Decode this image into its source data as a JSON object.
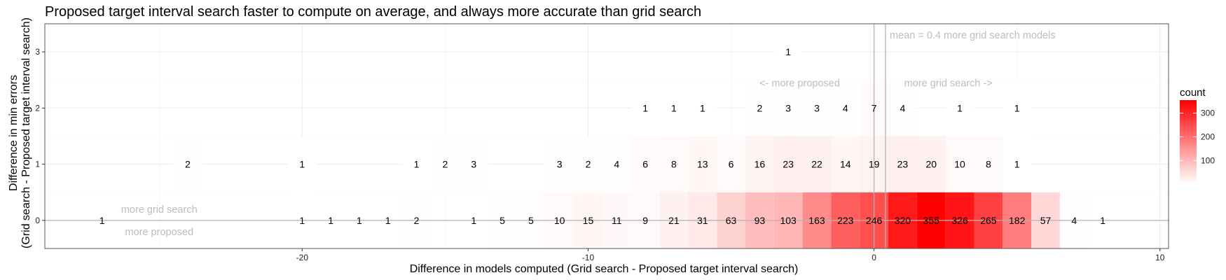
{
  "chart_data": {
    "type": "heatmap",
    "title": "Proposed target interval search faster to compute on average, and always more accurate than grid search",
    "xlabel": "Difference in models computed (Grid search - Proposed target interval search)",
    "ylabel_lines": [
      "Difference in min errors",
      "(Grid search - Proposed target interval search)"
    ],
    "xlim": [
      -29,
      10.3
    ],
    "ylim": [
      -0.5,
      3.5
    ],
    "x_ticks": [
      -20,
      -10,
      0,
      10
    ],
    "x_tick_labels": [
      "-20",
      "-10",
      "0",
      "10"
    ],
    "y_ticks": [
      0,
      1,
      2,
      3
    ],
    "y_tick_labels": [
      "0",
      "1",
      "2",
      "3"
    ],
    "grid": true,
    "color_scale": {
      "low": "#ffffff",
      "high": "#ff0000",
      "min": 1,
      "max": 355
    },
    "legend": {
      "title": "count",
      "ticks": [
        100,
        200,
        300
      ],
      "tick_labels": [
        "100",
        "200",
        "300"
      ],
      "position": "right"
    },
    "vlines": [
      {
        "x": 0,
        "note": "zero"
      },
      {
        "x": 0.4,
        "note": "mean"
      }
    ],
    "annotations": [
      {
        "text": "mean = 0.4 more grid search models",
        "x": 0.55,
        "y": 3.3,
        "anchor": "start"
      },
      {
        "text": "<- more proposed",
        "x": -2.6,
        "y": 2.45,
        "anchor": "middle"
      },
      {
        "text": "more grid search ->",
        "x": 2.6,
        "y": 2.45,
        "anchor": "middle"
      },
      {
        "text": "more grid search",
        "x": -25,
        "y": 0.2,
        "anchor": "middle"
      },
      {
        "text": "more proposed",
        "x": -25,
        "y": -0.2,
        "anchor": "middle"
      }
    ],
    "cells": [
      {
        "x": -27,
        "y": 0,
        "count": 1
      },
      {
        "x": -20,
        "y": 0,
        "count": 1
      },
      {
        "x": -19,
        "y": 0,
        "count": 1
      },
      {
        "x": -18,
        "y": 0,
        "count": 1
      },
      {
        "x": -17,
        "y": 0,
        "count": 1
      },
      {
        "x": -16,
        "y": 0,
        "count": 2
      },
      {
        "x": -14,
        "y": 0,
        "count": 1
      },
      {
        "x": -13,
        "y": 0,
        "count": 5
      },
      {
        "x": -12,
        "y": 0,
        "count": 5
      },
      {
        "x": -11,
        "y": 0,
        "count": 10
      },
      {
        "x": -10,
        "y": 0,
        "count": 15
      },
      {
        "x": -9,
        "y": 0,
        "count": 11
      },
      {
        "x": -8,
        "y": 0,
        "count": 9
      },
      {
        "x": -7,
        "y": 0,
        "count": 21
      },
      {
        "x": -6,
        "y": 0,
        "count": 31
      },
      {
        "x": -5,
        "y": 0,
        "count": 63
      },
      {
        "x": -4,
        "y": 0,
        "count": 93
      },
      {
        "x": -3,
        "y": 0,
        "count": 103
      },
      {
        "x": -2,
        "y": 0,
        "count": 163
      },
      {
        "x": -1,
        "y": 0,
        "count": 223
      },
      {
        "x": 0,
        "y": 0,
        "count": 246
      },
      {
        "x": 1,
        "y": 0,
        "count": 320
      },
      {
        "x": 2,
        "y": 0,
        "count": 355
      },
      {
        "x": 3,
        "y": 0,
        "count": 326
      },
      {
        "x": 4,
        "y": 0,
        "count": 265
      },
      {
        "x": 5,
        "y": 0,
        "count": 182
      },
      {
        "x": 6,
        "y": 0,
        "count": 57
      },
      {
        "x": 7,
        "y": 0,
        "count": 4
      },
      {
        "x": 8,
        "y": 0,
        "count": 1
      },
      {
        "x": -24,
        "y": 1,
        "count": 2
      },
      {
        "x": -20,
        "y": 1,
        "count": 1
      },
      {
        "x": -16,
        "y": 1,
        "count": 1
      },
      {
        "x": -15,
        "y": 1,
        "count": 2
      },
      {
        "x": -14,
        "y": 1,
        "count": 3
      },
      {
        "x": -11,
        "y": 1,
        "count": 3
      },
      {
        "x": -10,
        "y": 1,
        "count": 2
      },
      {
        "x": -9,
        "y": 1,
        "count": 4
      },
      {
        "x": -8,
        "y": 1,
        "count": 6
      },
      {
        "x": -7,
        "y": 1,
        "count": 8
      },
      {
        "x": -6,
        "y": 1,
        "count": 13
      },
      {
        "x": -5,
        "y": 1,
        "count": 6
      },
      {
        "x": -4,
        "y": 1,
        "count": 16
      },
      {
        "x": -3,
        "y": 1,
        "count": 23
      },
      {
        "x": -2,
        "y": 1,
        "count": 22
      },
      {
        "x": -1,
        "y": 1,
        "count": 14
      },
      {
        "x": 0,
        "y": 1,
        "count": 19
      },
      {
        "x": 1,
        "y": 1,
        "count": 23
      },
      {
        "x": 2,
        "y": 1,
        "count": 20
      },
      {
        "x": 3,
        "y": 1,
        "count": 10
      },
      {
        "x": 4,
        "y": 1,
        "count": 8
      },
      {
        "x": 5,
        "y": 1,
        "count": 1
      },
      {
        "x": -8,
        "y": 2,
        "count": 1
      },
      {
        "x": -7,
        "y": 2,
        "count": 1
      },
      {
        "x": -6,
        "y": 2,
        "count": 1
      },
      {
        "x": -4,
        "y": 2,
        "count": 2
      },
      {
        "x": -3,
        "y": 2,
        "count": 3
      },
      {
        "x": -2,
        "y": 2,
        "count": 3
      },
      {
        "x": -1,
        "y": 2,
        "count": 4
      },
      {
        "x": 0,
        "y": 2,
        "count": 7
      },
      {
        "x": 1,
        "y": 2,
        "count": 4
      },
      {
        "x": 3,
        "y": 2,
        "count": 1
      },
      {
        "x": 5,
        "y": 2,
        "count": 1
      },
      {
        "x": -3,
        "y": 3,
        "count": 1
      }
    ]
  }
}
